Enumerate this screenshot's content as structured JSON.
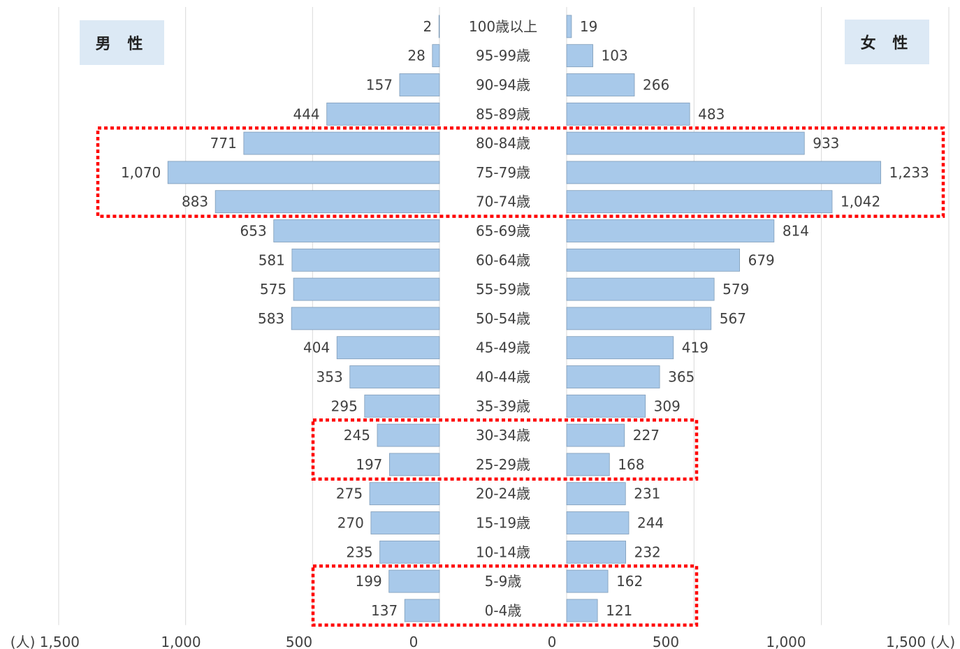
{
  "labels": {
    "male": "男 性",
    "female": "女 性"
  },
  "chart_data": {
    "type": "bar",
    "orientation": "horizontal",
    "subtype": "population-pyramid",
    "categories": [
      "100歳以上",
      "95-99歳",
      "90-94歳",
      "85-89歳",
      "80-84歳",
      "75-79歳",
      "70-74歳",
      "65-69歳",
      "60-64歳",
      "55-59歳",
      "50-54歳",
      "45-49歳",
      "40-44歳",
      "35-39歳",
      "30-34歳",
      "25-29歳",
      "20-24歳",
      "15-19歳",
      "10-14歳",
      "5-9歳",
      "0-4歳"
    ],
    "series": [
      {
        "name": "男 性",
        "side": "left",
        "values": [
          2,
          28,
          157,
          444,
          771,
          1070,
          883,
          653,
          581,
          575,
          583,
          404,
          353,
          295,
          245,
          197,
          275,
          270,
          235,
          199,
          137
        ],
        "labels": [
          "2",
          "28",
          "157",
          "444",
          "771",
          "1,070",
          "883",
          "653",
          "581",
          "575",
          "583",
          "404",
          "353",
          "295",
          "245",
          "197",
          "275",
          "270",
          "235",
          "199",
          "137"
        ]
      },
      {
        "name": "女 性",
        "side": "right",
        "values": [
          19,
          103,
          266,
          483,
          933,
          1233,
          1042,
          814,
          679,
          579,
          567,
          419,
          365,
          309,
          227,
          168,
          231,
          244,
          232,
          162,
          121
        ],
        "labels": [
          "19",
          "103",
          "266",
          "483",
          "933",
          "1,233",
          "1,042",
          "814",
          "679",
          "579",
          "567",
          "419",
          "365",
          "309",
          "227",
          "168",
          "231",
          "244",
          "232",
          "162",
          "121"
        ]
      }
    ],
    "xlim": [
      0,
      1500
    ],
    "x_ticks_left": [
      "(人) 1,500",
      "1,000",
      "500",
      "0"
    ],
    "x_ticks_right": [
      "0",
      "500",
      "1,000",
      "1,500 (人)"
    ],
    "bar_color": "#a8c9ea",
    "bar_edge_color": "#7f9cb8",
    "grid": true,
    "highlight_color": "#ff0000",
    "highlighted_groups": [
      [
        "80-84歳",
        "75-79歳",
        "70-74歳"
      ],
      [
        "30-34歳",
        "25-29歳"
      ],
      [
        "5-9歳",
        "0-4歳"
      ]
    ]
  }
}
